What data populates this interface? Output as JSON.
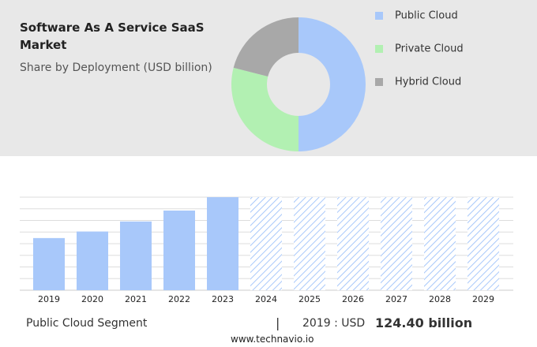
{
  "chart_data": [
    {
      "type": "donut",
      "title": "Software As A Service SaaS Market",
      "subtitle": "Share by Deployment (USD billion)",
      "categories": [
        "Public Cloud",
        "Private Cloud",
        "Hybrid Cloud"
      ],
      "values": [
        50,
        29,
        21
      ],
      "colors": [
        "#a8c8fa",
        "#b2f0b2",
        "#a8a8a8"
      ]
    },
    {
      "type": "bar",
      "categories": [
        "2019",
        "2020",
        "2021",
        "2022",
        "2023",
        "2024",
        "2025",
        "2026",
        "2027",
        "2028",
        "2029"
      ],
      "values": [
        124.4,
        140,
        164,
        190,
        222,
        null,
        null,
        null,
        null,
        null,
        null
      ],
      "color": "#a8c8fa",
      "grid": true
    }
  ],
  "footer": {
    "segment": "Public Cloud Segment",
    "separator": "|",
    "year_label": "2019 : USD",
    "value": "124.40 billion",
    "source": "www.technavio.io"
  }
}
